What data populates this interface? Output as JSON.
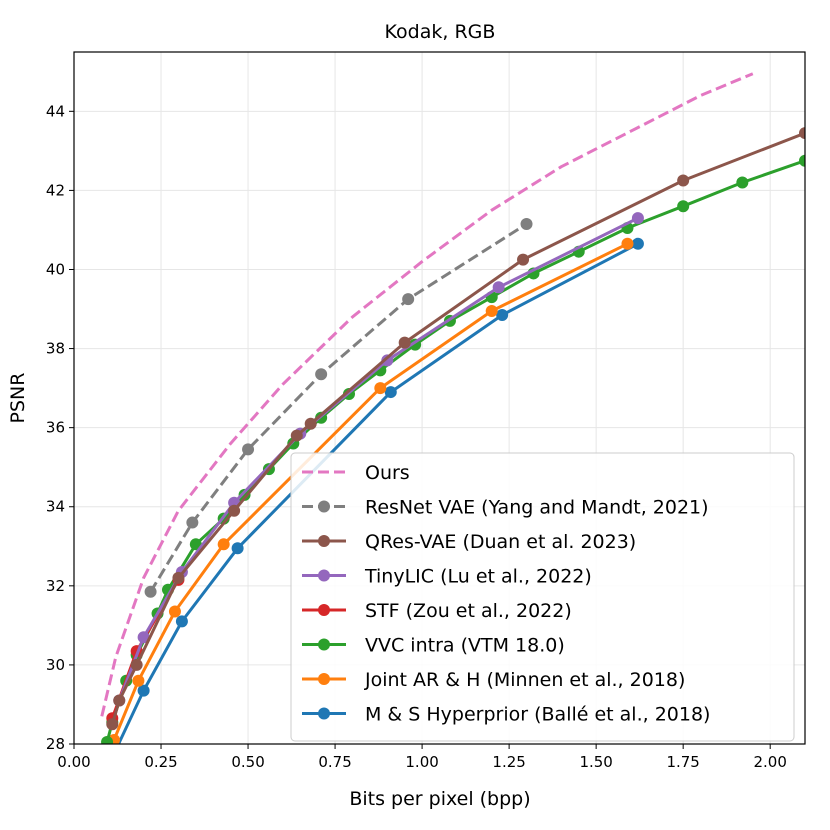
{
  "chart_data": {
    "type": "line",
    "title": "Kodak, RGB",
    "xlabel": "Bits per pixel (bpp)",
    "ylabel": "PSNR",
    "xlim": [
      0.0,
      2.1
    ],
    "ylim": [
      28,
      45.5
    ],
    "xticks": [
      0.0,
      0.25,
      0.5,
      0.75,
      1.0,
      1.25,
      1.5,
      1.75,
      2.0
    ],
    "xtick_labels": [
      "0.00",
      "0.25",
      "0.50",
      "0.75",
      "1.00",
      "1.25",
      "1.50",
      "1.75",
      "2.00"
    ],
    "yticks": [
      28,
      30,
      32,
      34,
      36,
      38,
      40,
      42,
      44
    ],
    "ytick_labels": [
      "28",
      "30",
      "32",
      "34",
      "36",
      "38",
      "40",
      "42",
      "44"
    ],
    "grid": true,
    "legend_position": "lower-right",
    "series": [
      {
        "name": "Ours",
        "color": "#e377c2",
        "style": "dashed",
        "markers": false,
        "x": [
          0.08,
          0.12,
          0.2,
          0.3,
          0.45,
          0.6,
          0.8,
          1.0,
          1.2,
          1.4,
          1.6,
          1.8,
          1.95
        ],
        "y": [
          28.7,
          30.2,
          32.2,
          33.9,
          35.6,
          37.1,
          38.8,
          40.2,
          41.5,
          42.6,
          43.5,
          44.4,
          44.95
        ]
      },
      {
        "name": "ResNet VAE (Yang and Mandt, 2021)",
        "color": "#7f7f7f",
        "style": "dashed",
        "markers": true,
        "x": [
          0.22,
          0.34,
          0.5,
          0.71,
          0.96,
          1.3
        ],
        "y": [
          31.85,
          33.6,
          35.45,
          37.35,
          39.25,
          41.15
        ]
      },
      {
        "name": "QRes-VAE (Duan et al. 2023)",
        "color": "#8c564b",
        "style": "solid",
        "markers": true,
        "x": [
          0.11,
          0.13,
          0.18,
          0.3,
          0.46,
          0.64,
          0.68,
          0.95,
          1.29,
          1.75,
          2.1
        ],
        "y": [
          28.5,
          29.1,
          30.0,
          32.2,
          33.9,
          35.8,
          36.1,
          38.15,
          40.25,
          42.25,
          43.45
        ]
      },
      {
        "name": "TinyLIC (Lu et al., 2022)",
        "color": "#9467bd",
        "style": "solid",
        "markers": true,
        "x": [
          0.13,
          0.2,
          0.31,
          0.46,
          0.65,
          0.9,
          1.22,
          1.62
        ],
        "y": [
          29.1,
          30.7,
          32.35,
          34.1,
          35.85,
          37.7,
          39.55,
          41.3
        ]
      },
      {
        "name": "STF (Zou et al., 2022)",
        "color": "#d62728",
        "style": "solid",
        "markers": true,
        "x": [
          0.11,
          0.18,
          0.3
        ],
        "y": [
          28.65,
          30.35,
          32.15
        ]
      },
      {
        "name": "VVC intra (VTM 18.0)",
        "color": "#2ca02c",
        "style": "solid",
        "markers": true,
        "x": [
          0.095,
          0.11,
          0.15,
          0.18,
          0.24,
          0.27,
          0.35,
          0.43,
          0.49,
          0.56,
          0.63,
          0.71,
          0.79,
          0.88,
          0.98,
          1.08,
          1.2,
          1.32,
          1.45,
          1.59,
          1.75,
          1.92,
          2.1
        ],
        "y": [
          28.05,
          28.55,
          29.6,
          30.25,
          31.3,
          31.9,
          33.05,
          33.7,
          34.3,
          34.95,
          35.6,
          36.25,
          36.85,
          37.45,
          38.1,
          38.7,
          39.3,
          39.9,
          40.45,
          41.05,
          41.6,
          42.2,
          42.75
        ]
      },
      {
        "name": "Joint AR & H (Minnen et al., 2018)",
        "color": "#ff7f0e",
        "style": "solid",
        "markers": true,
        "x": [
          0.115,
          0.185,
          0.29,
          0.43,
          0.88,
          1.2,
          1.59
        ],
        "y": [
          28.1,
          29.6,
          31.35,
          33.05,
          37.0,
          38.95,
          40.65
        ]
      },
      {
        "name": "M & S Hyperprior (Ballé et al., 2018)",
        "color": "#1f77b4",
        "style": "solid",
        "markers": true,
        "x": [
          0.12,
          0.2,
          0.31,
          0.47,
          0.91,
          1.23,
          1.62
        ],
        "y": [
          27.85,
          29.35,
          31.1,
          32.95,
          36.9,
          38.85,
          40.65
        ]
      }
    ]
  }
}
